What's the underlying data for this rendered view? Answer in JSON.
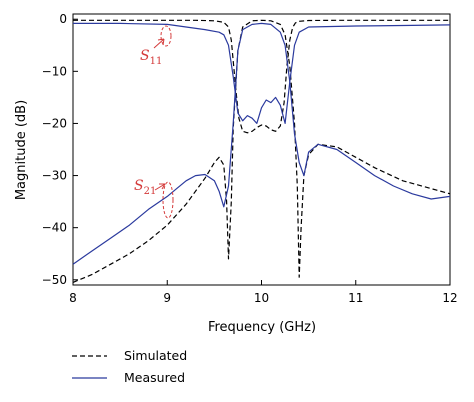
{
  "chart_data": {
    "type": "line",
    "title": "",
    "xlabel": "Frequency (GHz)",
    "ylabel": "Magnitude (dB)",
    "xlim": [
      8,
      12
    ],
    "ylim": [
      -51,
      1
    ],
    "x_ticks": [
      8,
      9,
      10,
      11,
      12
    ],
    "y_ticks": [
      0,
      -10,
      -20,
      -30,
      -40,
      -50
    ],
    "x_tick_labels": [
      "8",
      "9",
      "10",
      "11",
      "12"
    ],
    "y_tick_labels": [
      "0",
      "−10",
      "−20",
      "−30",
      "−40",
      "−50"
    ],
    "grid": false,
    "legend_position": "bottom-left, below plot",
    "annotations": [
      {
        "main": "S",
        "sub": "11"
      },
      {
        "main": "S",
        "sub": "21"
      }
    ],
    "annotation_color": "#d43a3a",
    "series": [
      {
        "name": "Simulated",
        "trace": "S11",
        "style": "dashed",
        "color": "#000000",
        "x": [
          8.0,
          8.5,
          9.0,
          9.3,
          9.5,
          9.6,
          9.65,
          9.68,
          9.7,
          9.73,
          9.76,
          9.8,
          9.85,
          9.9,
          9.95,
          10.0,
          10.05,
          10.1,
          10.15,
          10.2,
          10.24,
          10.27,
          10.3,
          10.33,
          10.36,
          10.4,
          10.5,
          10.8,
          11.2,
          12.0
        ],
        "y": [
          -0.2,
          -0.2,
          -0.2,
          -0.2,
          -0.3,
          -0.6,
          -1.5,
          -4,
          -8,
          -14,
          -19,
          -21.5,
          -21.8,
          -21.5,
          -20.8,
          -20.3,
          -20.5,
          -21.2,
          -21.5,
          -20.5,
          -16,
          -9,
          -4,
          -1.6,
          -0.7,
          -0.4,
          -0.25,
          -0.2,
          -0.2,
          -0.2
        ]
      },
      {
        "name": "Simulated",
        "trace": "S21",
        "style": "dashed",
        "color": "#000000",
        "x": [
          8.0,
          8.2,
          8.4,
          8.6,
          8.8,
          9.0,
          9.2,
          9.4,
          9.5,
          9.55,
          9.6,
          9.63,
          9.65,
          9.68,
          9.7,
          9.75,
          9.8,
          9.9,
          10.0,
          10.1,
          10.2,
          10.25,
          10.3,
          10.35,
          10.38,
          10.4,
          10.42,
          10.45,
          10.5,
          10.6,
          10.8,
          11.0,
          11.2,
          11.5,
          12.0
        ],
        "y": [
          -50.5,
          -49,
          -47,
          -45,
          -42.5,
          -39.5,
          -35.5,
          -30.5,
          -27.5,
          -26.5,
          -28,
          -35,
          -46,
          -35,
          -21,
          -6,
          -1.5,
          -0.3,
          -0.2,
          -0.3,
          -1,
          -3,
          -9,
          -20,
          -32,
          -49.5,
          -40,
          -30,
          -26,
          -24,
          -24.5,
          -26.5,
          -28.5,
          -31,
          -33.5
        ]
      },
      {
        "name": "Measured",
        "trace": "S11",
        "style": "solid",
        "color": "#2b3a9e",
        "x": [
          8.0,
          8.5,
          9.0,
          9.2,
          9.4,
          9.55,
          9.6,
          9.65,
          9.7,
          9.75,
          9.8,
          9.85,
          9.9,
          9.95,
          10.0,
          10.05,
          10.1,
          10.15,
          10.2,
          10.25,
          10.3,
          10.35,
          10.4,
          10.5,
          11.0,
          11.5,
          12.0
        ],
        "y": [
          -0.8,
          -0.8,
          -1.0,
          -1.5,
          -2,
          -2.5,
          -3,
          -5,
          -11,
          -18,
          -19.5,
          -18.5,
          -19,
          -20,
          -17,
          -15.5,
          -16,
          -15,
          -16.5,
          -20,
          -12,
          -5,
          -2.5,
          -1.5,
          -1.3,
          -1.2,
          -1.1
        ]
      },
      {
        "name": "Measured",
        "trace": "S21",
        "style": "solid",
        "color": "#2b3a9e",
        "x": [
          8.0,
          8.2,
          8.4,
          8.6,
          8.8,
          9.0,
          9.1,
          9.2,
          9.3,
          9.4,
          9.5,
          9.55,
          9.6,
          9.65,
          9.7,
          9.75,
          9.8,
          9.9,
          10.0,
          10.1,
          10.2,
          10.25,
          10.3,
          10.35,
          10.4,
          10.45,
          10.5,
          10.6,
          10.8,
          11.0,
          11.2,
          11.4,
          11.6,
          11.8,
          12.0
        ],
        "y": [
          -47,
          -44.5,
          -42,
          -39.5,
          -36.5,
          -34,
          -32.5,
          -31,
          -30,
          -29.8,
          -31,
          -33,
          -36,
          -32,
          -20,
          -6,
          -2,
          -1,
          -0.8,
          -1,
          -2.5,
          -5,
          -12,
          -22,
          -27.5,
          -30,
          -25.5,
          -24,
          -25,
          -27.5,
          -30,
          -32,
          -33.5,
          -34.5,
          -34
        ]
      }
    ]
  }
}
